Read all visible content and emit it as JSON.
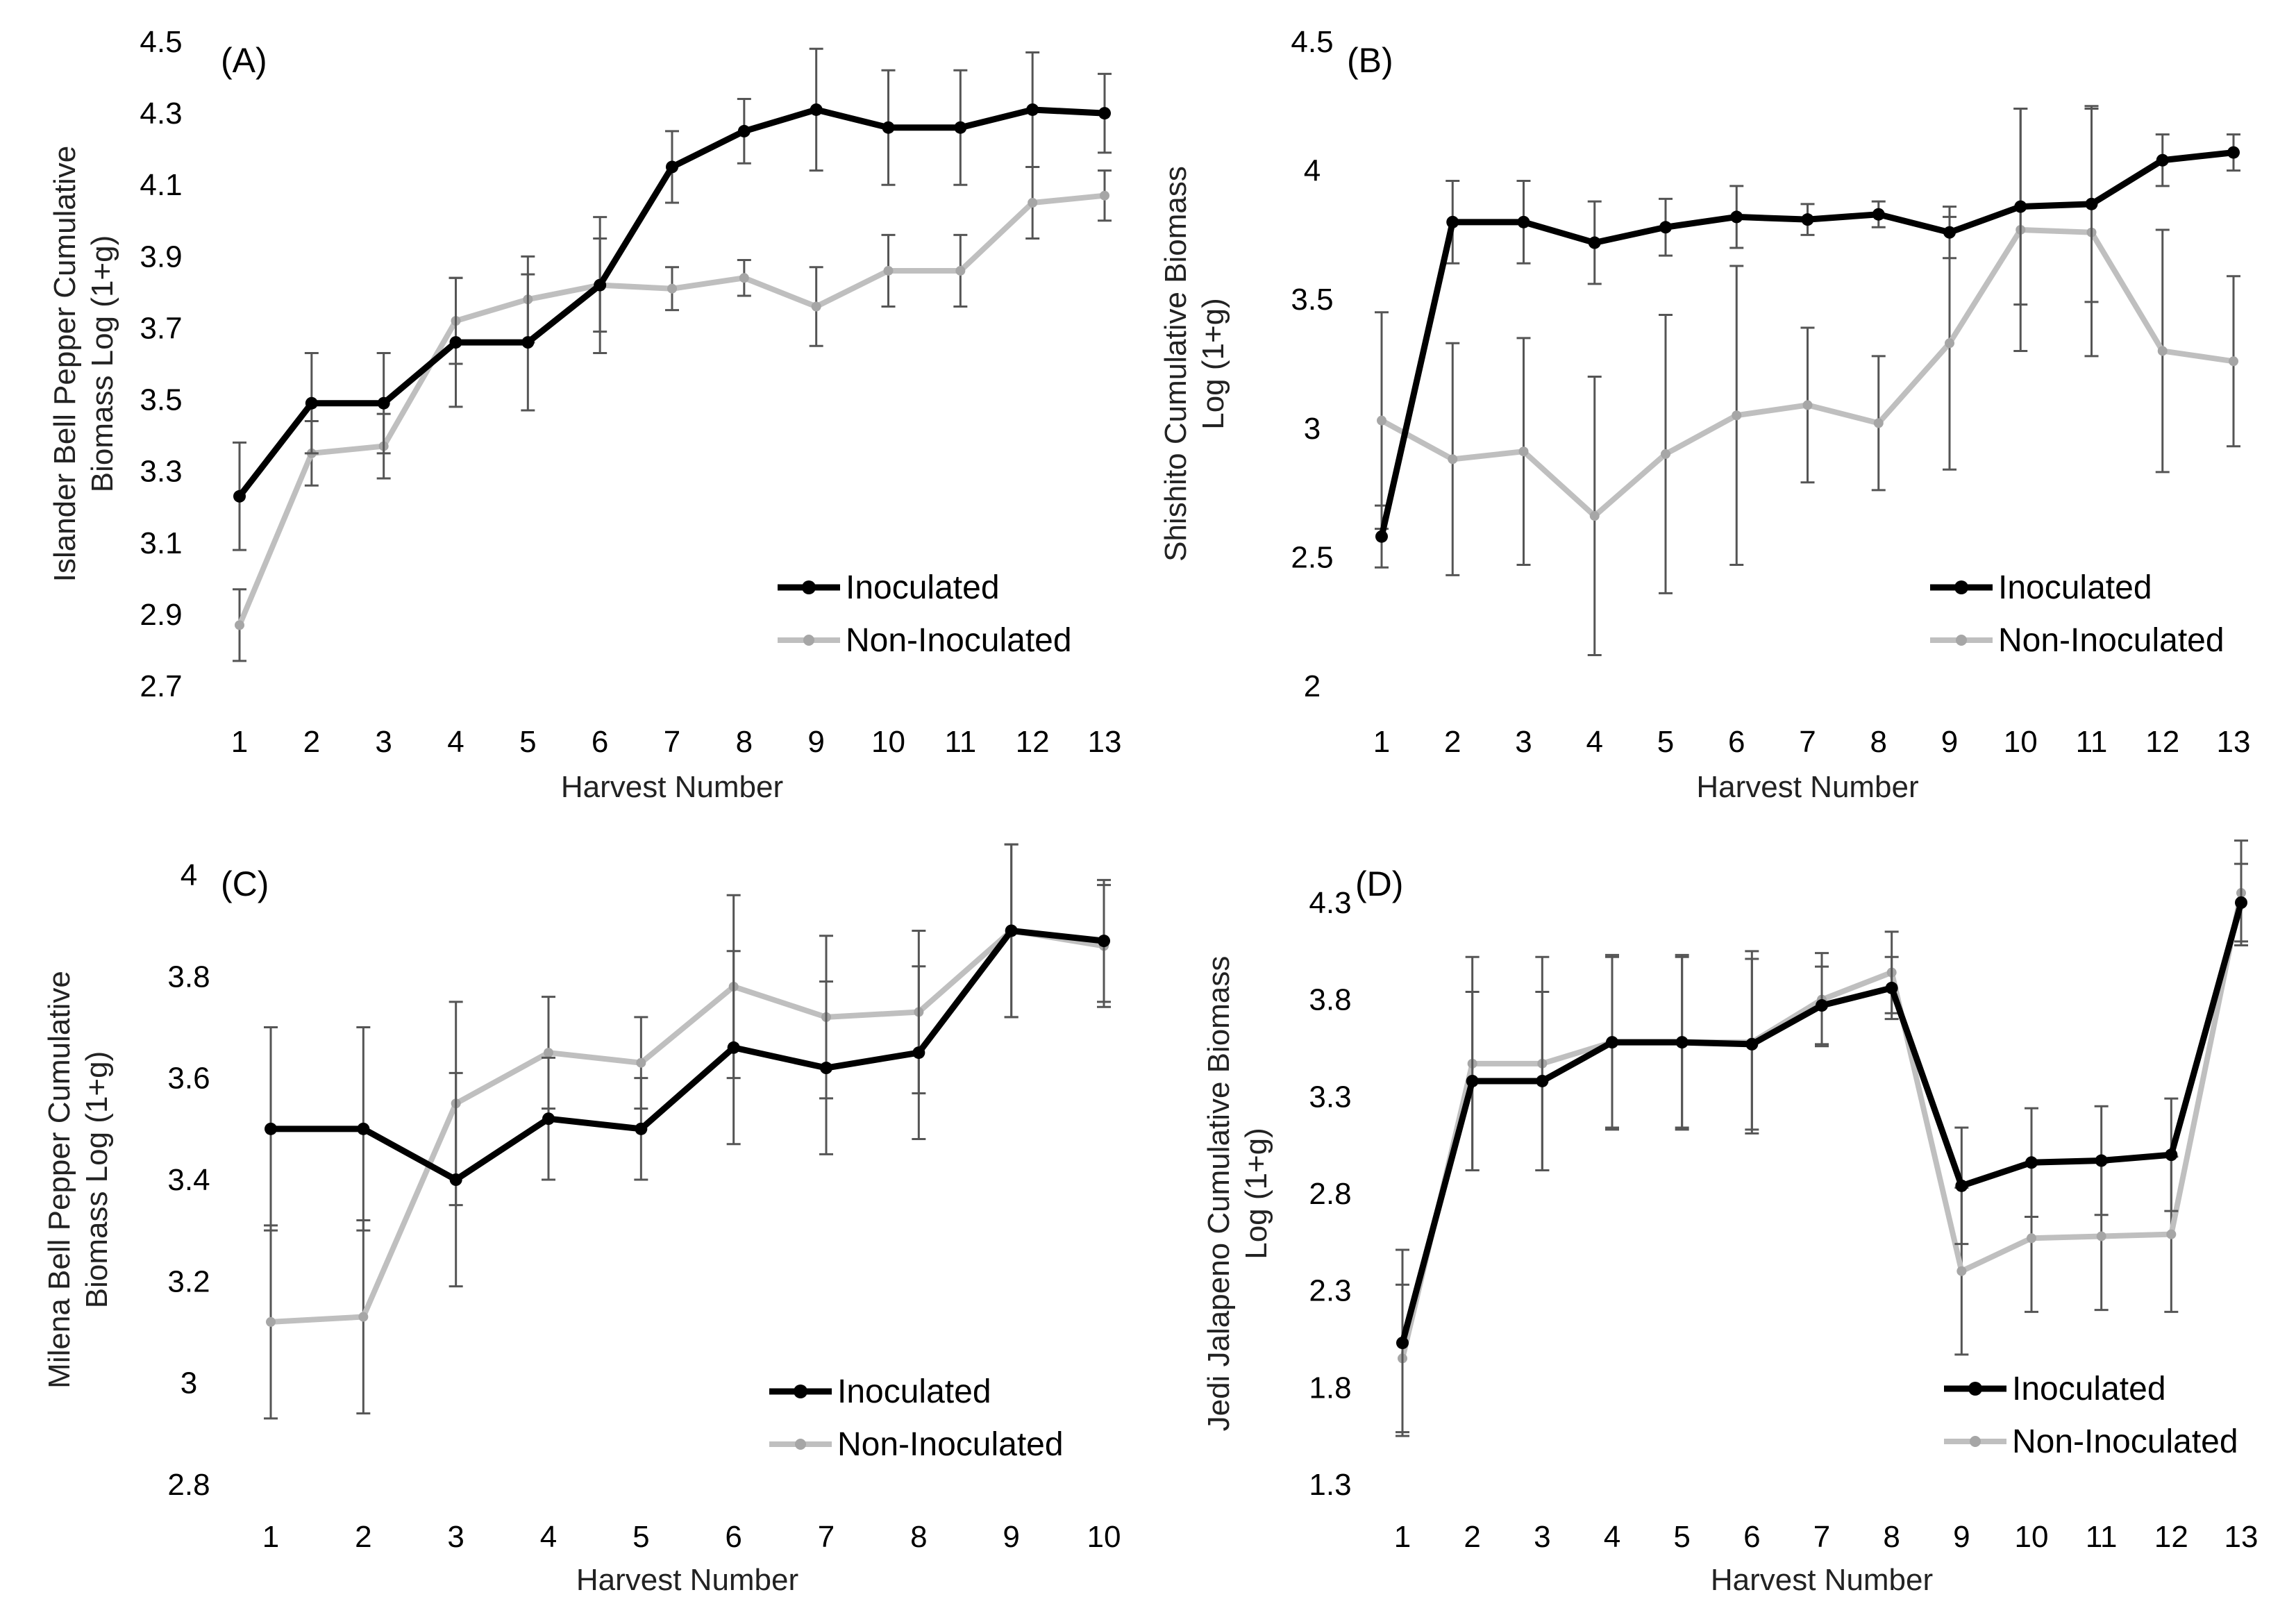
{
  "figure": {
    "legend": [
      "Inoculated",
      "Non-Inoculated"
    ],
    "colors": {
      "inoculated": "#000000",
      "non_inoculated": "#bfbfbf",
      "error_bar": "#555555"
    }
  },
  "chart_data": [
    {
      "panel": "(A)",
      "type": "line",
      "xlabel": "Harvest Number",
      "ylabel": "Islander Bell Pepper Cumulative Biomass Log (1+g)",
      "ylim": [
        2.7,
        4.5
      ],
      "yticks": [
        "2.7",
        "2.9",
        "3.1",
        "3.3",
        "3.5",
        "3.7",
        "3.9",
        "4.1",
        "4.3",
        "4.5"
      ],
      "categories": [
        "1",
        "2",
        "3",
        "4",
        "5",
        "6",
        "7",
        "8",
        "9",
        "10",
        "11",
        "12",
        "13"
      ],
      "legend_position": "bottom-right",
      "grid": false,
      "series": [
        {
          "name": "Inoculated",
          "color": "#000000",
          "values": [
            3.23,
            3.49,
            3.49,
            3.66,
            3.66,
            3.82,
            4.15,
            4.25,
            4.31,
            4.26,
            4.26,
            4.31,
            4.3
          ],
          "errors": [
            0.15,
            0.14,
            0.14,
            0.18,
            0.19,
            0.19,
            0.1,
            0.09,
            0.17,
            0.16,
            0.16,
            0.16,
            0.11
          ]
        },
        {
          "name": "Non-Inoculated",
          "color": "#bfbfbf",
          "values": [
            2.87,
            3.35,
            3.37,
            3.72,
            3.78,
            3.82,
            3.81,
            3.84,
            3.76,
            3.86,
            3.86,
            4.05,
            4.07
          ],
          "errors": [
            0.1,
            0.09,
            0.09,
            0.12,
            0.12,
            0.13,
            0.06,
            0.05,
            0.11,
            0.1,
            0.1,
            0.1,
            0.07
          ]
        }
      ]
    },
    {
      "panel": "(B)",
      "type": "line",
      "xlabel": "Harvest Number",
      "ylabel": "Shishito Cumulative Biomass Log (1+g)",
      "ylim": [
        2,
        4.5
      ],
      "yticks": [
        "2",
        "2.5",
        "3",
        "3.5",
        "4",
        "4.5"
      ],
      "categories": [
        "1",
        "2",
        "3",
        "4",
        "5",
        "6",
        "7",
        "8",
        "9",
        "10",
        "11",
        "12",
        "13"
      ],
      "legend_position": "bottom-right",
      "grid": false,
      "series": [
        {
          "name": "Inoculated",
          "color": "#000000",
          "values": [
            2.58,
            3.8,
            3.8,
            3.72,
            3.78,
            3.82,
            3.81,
            3.83,
            3.76,
            3.86,
            3.87,
            4.04,
            4.07
          ],
          "errors": [
            0.12,
            0.16,
            0.16,
            0.16,
            0.11,
            0.12,
            0.06,
            0.05,
            0.1,
            0.38,
            0.38,
            0.1,
            0.07
          ]
        },
        {
          "name": "Non-Inoculated",
          "color": "#bfbfbf",
          "values": [
            3.03,
            2.88,
            2.91,
            2.66,
            2.9,
            3.05,
            3.09,
            3.02,
            3.33,
            3.77,
            3.76,
            3.3,
            3.26
          ],
          "errors": [
            0.42,
            0.45,
            0.44,
            0.54,
            0.54,
            0.58,
            0.3,
            0.26,
            0.49,
            0.47,
            0.48,
            0.47,
            0.33
          ]
        }
      ]
    },
    {
      "panel": "(C)",
      "type": "line",
      "xlabel": "Harvest Number",
      "ylabel": "Milena Bell Pepper Cumulative Biomass Log (1+g)",
      "ylim": [
        2.8,
        4
      ],
      "yticks": [
        "2.8",
        "3",
        "3.2",
        "3.4",
        "3.6",
        "3.8",
        "4"
      ],
      "categories": [
        "1",
        "2",
        "3",
        "4",
        "5",
        "6",
        "7",
        "8",
        "9",
        "10"
      ],
      "legend_position": "bottom-right",
      "grid": false,
      "series": [
        {
          "name": "Inoculated",
          "color": "#000000",
          "values": [
            3.5,
            3.5,
            3.4,
            3.52,
            3.5,
            3.66,
            3.62,
            3.65,
            3.89,
            3.87
          ],
          "errors": [
            0.2,
            0.2,
            0.21,
            0.12,
            0.1,
            0.19,
            0.17,
            0.17,
            0.17,
            0.12
          ]
        },
        {
          "name": "Non-Inoculated",
          "color": "#bfbfbf",
          "values": [
            3.12,
            3.13,
            3.55,
            3.65,
            3.63,
            3.78,
            3.72,
            3.73,
            3.89,
            3.86
          ],
          "errors": [
            0.19,
            0.19,
            0.2,
            0.11,
            0.09,
            0.18,
            0.16,
            0.16,
            0.17,
            0.12
          ]
        }
      ]
    },
    {
      "panel": "(D)",
      "type": "line",
      "xlabel": "Harvest Number",
      "ylabel": "Jedi Jalapeno Cumulative Biomass Log (1+g)",
      "ylim": [
        1.3,
        4.3
      ],
      "yticks": [
        "1.3",
        "1.8",
        "2.3",
        "2.8",
        "3.3",
        "3.8",
        "4.3"
      ],
      "categories": [
        "1",
        "2",
        "3",
        "4",
        "5",
        "6",
        "7",
        "8",
        "9",
        "10",
        "11",
        "12",
        "13"
      ],
      "legend_position": "bottom-right",
      "grid": false,
      "series": [
        {
          "name": "Inoculated",
          "color": "#000000",
          "values": [
            2.03,
            3.38,
            3.38,
            3.58,
            3.58,
            3.57,
            3.77,
            3.86,
            2.84,
            2.96,
            2.97,
            3.0,
            4.3
          ],
          "errors": [
            0.48,
            0.46,
            0.46,
            0.44,
            0.44,
            0.44,
            0.2,
            0.16,
            0.3,
            0.28,
            0.28,
            0.29,
            0.2
          ]
        },
        {
          "name": "Non-Inoculated",
          "color": "#bfbfbf",
          "values": [
            1.95,
            3.47,
            3.47,
            3.58,
            3.58,
            3.58,
            3.8,
            3.94,
            2.4,
            2.57,
            2.58,
            2.59,
            4.35
          ],
          "errors": [
            0.38,
            0.55,
            0.55,
            0.45,
            0.45,
            0.47,
            0.24,
            0.21,
            0.43,
            0.38,
            0.38,
            0.4,
            0.27
          ]
        }
      ]
    }
  ]
}
